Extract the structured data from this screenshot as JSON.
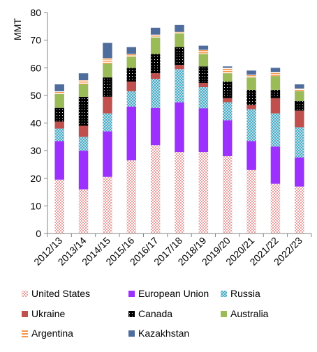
{
  "chart_data": {
    "type": "bar",
    "stacked": true,
    "ylabel": "MMT",
    "ylim": [
      0,
      80
    ],
    "yticks": [
      0,
      10,
      20,
      30,
      40,
      50,
      60,
      70,
      80
    ],
    "grid": false,
    "legend_position": "bottom",
    "categories": [
      "2012/13",
      "2013/14",
      "2014/15",
      "2015/16",
      "2016/17",
      "2017/18",
      "2018/19",
      "2019/20",
      "2020/21",
      "2021/22",
      "2022/23"
    ],
    "series": [
      {
        "name": "United States",
        "color": "#e8a0a0",
        "pattern": "checker",
        "values": [
          19.5,
          16.0,
          20.5,
          26.5,
          32.0,
          29.5,
          29.5,
          28.0,
          23.0,
          18.0,
          17.0
        ]
      },
      {
        "name": "European Union",
        "color": "#9b30ff",
        "pattern": "solid",
        "values": [
          14.0,
          14.0,
          16.5,
          19.5,
          13.5,
          18.0,
          15.8,
          13.0,
          10.5,
          13.5,
          10.5
        ]
      },
      {
        "name": "Russia",
        "color": "#4bacc6",
        "pattern": "crosshatch",
        "values": [
          4.5,
          5.0,
          6.5,
          5.5,
          10.5,
          12.0,
          7.7,
          6.5,
          11.5,
          12.0,
          11.0
        ]
      },
      {
        "name": "Ukraine",
        "color": "#c0504d",
        "pattern": "solid",
        "values": [
          2.5,
          4.0,
          6.0,
          3.5,
          2.0,
          1.5,
          1.5,
          1.5,
          1.5,
          5.5,
          6.0
        ]
      },
      {
        "name": "Canada",
        "color": "#000000",
        "pattern": "dots",
        "values": [
          5.0,
          10.5,
          7.0,
          5.0,
          7.0,
          6.5,
          6.0,
          6.0,
          5.5,
          3.0,
          3.5
        ]
      },
      {
        "name": "Australia",
        "color": "#9bbb59",
        "pattern": "solid",
        "values": [
          5.0,
          4.5,
          5.0,
          4.0,
          6.0,
          5.0,
          4.5,
          3.0,
          4.5,
          5.0,
          3.5
        ]
      },
      {
        "name": "Argentina",
        "color": "#f79646",
        "pattern": "hstripes",
        "values": [
          1.0,
          1.5,
          2.0,
          1.0,
          1.0,
          0.5,
          1.5,
          2.0,
          1.0,
          1.5,
          1.0
        ]
      },
      {
        "name": "Kazakhstan",
        "color": "#4f6d9c",
        "pattern": "solid",
        "values": [
          2.5,
          2.5,
          5.5,
          2.5,
          2.5,
          2.5,
          1.5,
          0.5,
          1.5,
          1.5,
          1.5
        ]
      }
    ]
  }
}
